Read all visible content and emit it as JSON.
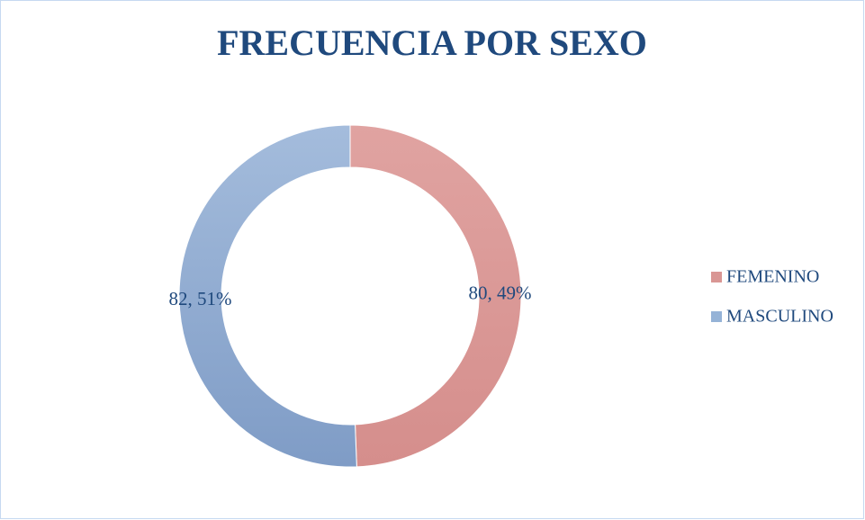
{
  "chart_data": {
    "type": "donut",
    "title": "FRECUENCIA POR SEXO",
    "categories": [
      "FEMENINO",
      "MASCULINO"
    ],
    "values": [
      80,
      82
    ],
    "value_labels": [
      "80, 49%",
      "82, 51%"
    ],
    "colors": [
      "#d99694",
      "#95b3d7"
    ],
    "legend": "right"
  }
}
